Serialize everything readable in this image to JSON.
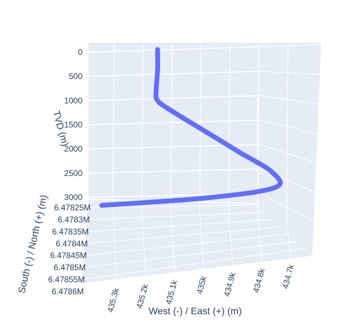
{
  "chart_data": {
    "type": "scatter3d-line",
    "title": "",
    "axes": {
      "x": {
        "label": "West (-) / East (+) (m)",
        "ticks": [
          "435.3k",
          "435.2k",
          "435.1k",
          "435k",
          "434.9k",
          "434.8k",
          "434.7k"
        ],
        "reversed": true
      },
      "y": {
        "label": "South (-) / North (+) (m)",
        "ticks": [
          "6.47825M",
          "6.4783M",
          "6.47835M",
          "6.4784M",
          "6.47845M",
          "6.4785M",
          "6.47855M",
          "6.4786M"
        ]
      },
      "z": {
        "label": "TVD (m)",
        "ticks": [
          "0",
          "500",
          "1000",
          "1500",
          "2000",
          "2500",
          "3000"
        ],
        "range": [
          0,
          3100
        ],
        "reversed": true
      }
    },
    "series": [
      {
        "color": "#636efa",
        "points": [
          {
            "tvd": 0,
            "east": 435130,
            "north": 6478300
          },
          {
            "tvd": 400,
            "east": 435130,
            "north": 6478300
          },
          {
            "tvd": 800,
            "east": 435135,
            "north": 6478300
          },
          {
            "tvd": 1000,
            "east": 435130,
            "north": 6478300
          },
          {
            "tvd": 1200,
            "east": 435080,
            "north": 6478290
          },
          {
            "tvd": 1500,
            "east": 434990,
            "north": 6478290
          },
          {
            "tvd": 2000,
            "east": 434840,
            "north": 6478280
          },
          {
            "tvd": 2400,
            "east": 434720,
            "north": 6478275
          },
          {
            "tvd": 2700,
            "east": 434710,
            "north": 6478270
          },
          {
            "tvd": 2900,
            "east": 434950,
            "north": 6478260
          },
          {
            "tvd": 3050,
            "east": 435330,
            "north": 6478250
          }
        ]
      }
    ],
    "grid": true,
    "background_color": "#e5ecf6"
  }
}
